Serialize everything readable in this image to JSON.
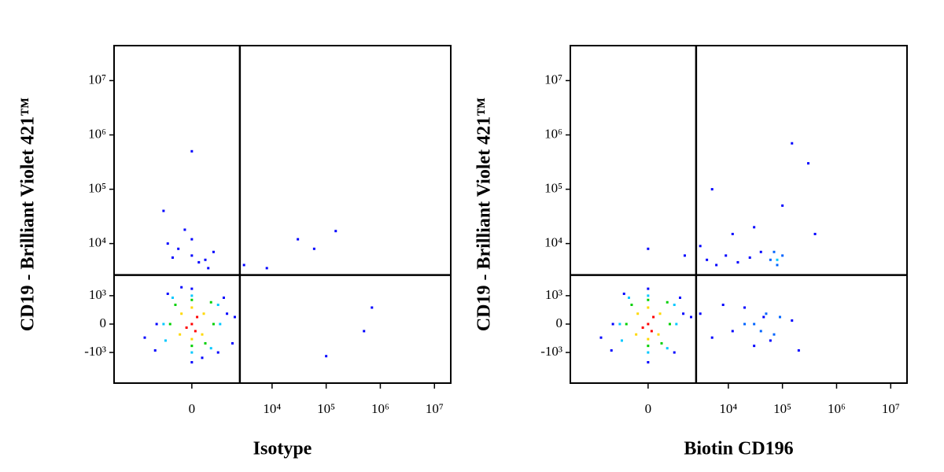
{
  "chart_data": [
    {
      "type": "scatter",
      "scale": "biexponential",
      "xlabel": "Isotype",
      "ylabel": "CD19 - Brilliant Violet 421™",
      "xlim": [
        -9000,
        20000000
      ],
      "ylim": [
        -4000,
        44000000
      ],
      "xticks": [
        0,
        {
          "value": 10000,
          "label": "10⁴"
        },
        {
          "value": 100000,
          "label": "10⁵"
        },
        {
          "value": 1000000,
          "label": "10⁶"
        },
        {
          "value": 10000000,
          "label": "10⁷"
        }
      ],
      "yticks": [
        {
          "value": -1000,
          "label": "-10³"
        },
        0,
        {
          "value": 1000,
          "label": "10³"
        },
        {
          "value": 10000,
          "label": "10⁴"
        },
        {
          "value": 100000,
          "label": "10⁵"
        },
        {
          "value": 1000000,
          "label": "10⁶"
        },
        {
          "value": 10000000,
          "label": "10⁷"
        }
      ],
      "gate": [
        2500,
        2600
      ],
      "series": [
        {
          "color": "#0000ff",
          "x": [
            -1400,
            1400,
            -2400,
            2000,
            -800,
            900,
            0,
            -1500,
            1200,
            0,
            300,
            -300,
            0,
            -400,
            400,
            -800,
            700,
            0,
            200,
            -200,
            500,
            -600,
            30000,
            60000,
            150000,
            8000,
            500000,
            3000,
            0,
            100000,
            700000,
            -1000,
            1800
          ],
          "y": [
            0,
            300,
            -400,
            200,
            1100,
            -1000,
            1400,
            -900,
            900,
            -1600,
            -1300,
            1500,
            6000,
            8000,
            5000,
            10000,
            7000,
            12000,
            4500,
            18000,
            3500,
            5500,
            12000,
            8000,
            17000,
            3500,
            -200,
            4000,
            500000,
            -1200,
            500,
            40000,
            -600
          ]
        },
        {
          "color": "#00c8ff",
          "x": [
            -1000,
            1000,
            -600,
            600,
            0,
            0,
            -900,
            900
          ],
          "y": [
            0,
            0,
            900,
            -800,
            1000,
            -1000,
            -500,
            600
          ]
        },
        {
          "color": "#00d000",
          "x": [
            -700,
            700,
            -500,
            600,
            0,
            0,
            400
          ],
          "y": [
            0,
            0,
            600,
            700,
            -700,
            800,
            -600
          ]
        },
        {
          "color": "#ffd800",
          "x": [
            -300,
            300,
            350,
            -350,
            0,
            0
          ],
          "y": [
            300,
            -300,
            300,
            -300,
            500,
            -450
          ]
        },
        {
          "color": "#ff0000",
          "x": [
            0,
            150,
            -150,
            100
          ],
          "y": [
            0,
            200,
            -100,
            -200
          ]
        }
      ]
    },
    {
      "type": "scatter",
      "scale": "biexponential",
      "xlabel": "Biotin CD196",
      "ylabel": "CD19 - Brilliant Violet 421™",
      "xlim": [
        -9000,
        20000000
      ],
      "ylim": [
        -4000,
        44000000
      ],
      "xticks": [
        0,
        {
          "value": 10000,
          "label": "10⁴"
        },
        {
          "value": 100000,
          "label": "10⁵"
        },
        {
          "value": 1000000,
          "label": "10⁶"
        },
        {
          "value": 10000000,
          "label": "10⁷"
        }
      ],
      "yticks": [
        {
          "value": -1000,
          "label": "-10³"
        },
        0,
        {
          "value": 1000,
          "label": "10³"
        },
        {
          "value": 10000,
          "label": "10⁴"
        },
        {
          "value": 100000,
          "label": "10⁵"
        },
        {
          "value": 1000000,
          "label": "10⁶"
        },
        {
          "value": 10000000,
          "label": "10⁷"
        }
      ],
      "gate": [
        2500,
        2600
      ],
      "series": [
        {
          "color": "#0000ff",
          "x": [
            -1400,
            1400,
            -2400,
            2000,
            -800,
            900,
            0,
            -1500,
            1200,
            0,
            3000,
            5000,
            8000,
            12000,
            20000,
            30000,
            45000,
            60000,
            150000,
            200000,
            4000,
            9000,
            15000,
            25000,
            40000,
            0,
            1500,
            3000,
            6000,
            12000,
            30000,
            300000,
            100000,
            150000,
            5000,
            400000
          ],
          "y": [
            0,
            300,
            -400,
            200,
            1100,
            -1000,
            1400,
            -900,
            900,
            -1600,
            300,
            -400,
            600,
            -200,
            500,
            -700,
            200,
            -500,
            100,
            -900,
            5000,
            6000,
            4500,
            5500,
            7000,
            8000,
            6000,
            9000,
            4000,
            15000,
            20000,
            300000,
            50000,
            700000,
            100000,
            15000
          ]
        },
        {
          "color": "#0064ff",
          "x": [
            30000,
            50000,
            70000,
            90000,
            20000,
            60000,
            80000,
            100000,
            70000,
            40000
          ],
          "y": [
            0,
            300,
            -300,
            200,
            0,
            5000,
            4000,
            6000,
            7000,
            -200
          ]
        },
        {
          "color": "#00c8ff",
          "x": [
            -1000,
            1000,
            -600,
            600,
            0,
            0,
            -900,
            900,
            80000
          ],
          "y": [
            0,
            0,
            900,
            -800,
            1000,
            -1000,
            -500,
            600,
            5000
          ]
        },
        {
          "color": "#00d000",
          "x": [
            -700,
            700,
            -500,
            600,
            0,
            0,
            400
          ],
          "y": [
            0,
            0,
            600,
            700,
            -700,
            800,
            -600
          ]
        },
        {
          "color": "#ffd800",
          "x": [
            -300,
            300,
            350,
            -350,
            0,
            0
          ],
          "y": [
            300,
            -300,
            300,
            -300,
            500,
            -450
          ]
        },
        {
          "color": "#ff0000",
          "x": [
            0,
            150,
            -150,
            100
          ],
          "y": [
            0,
            200,
            -100,
            -200
          ]
        }
      ]
    }
  ]
}
